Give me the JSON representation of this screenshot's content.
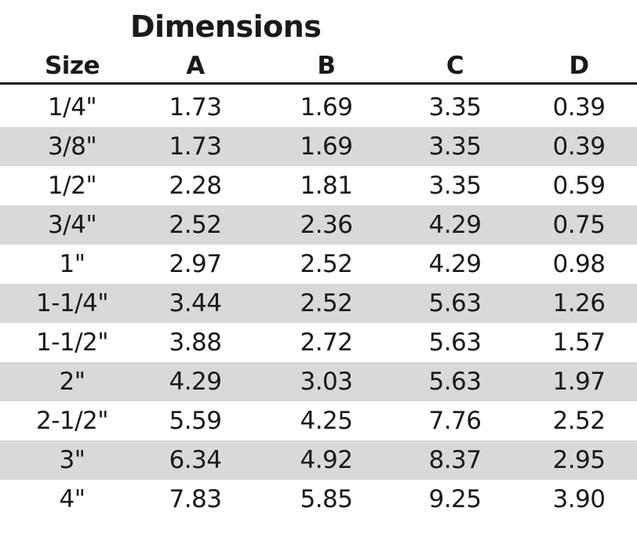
{
  "table": {
    "title": "Dimensions",
    "headers": [
      "Size",
      "A",
      "B",
      "C",
      "D"
    ],
    "rows": [
      [
        "1/4\"",
        "1.73",
        "1.69",
        "3.35",
        "0.39"
      ],
      [
        "3/8\"",
        "1.73",
        "1.69",
        "3.35",
        "0.39"
      ],
      [
        "1/2\"",
        "2.28",
        "1.81",
        "3.35",
        "0.59"
      ],
      [
        "3/4\"",
        "2.52",
        "2.36",
        "4.29",
        "0.75"
      ],
      [
        "1\"",
        "2.97",
        "2.52",
        "4.29",
        "0.98"
      ],
      [
        "1-1/4\"",
        "3.44",
        "2.52",
        "5.63",
        "1.26"
      ],
      [
        "1-1/2\"",
        "3.88",
        "2.72",
        "5.63",
        "1.57"
      ],
      [
        "2\"",
        "4.29",
        "3.03",
        "5.63",
        "1.97"
      ],
      [
        "2-1/2\"",
        "5.59",
        "4.25",
        "7.76",
        "2.52"
      ],
      [
        "3\"",
        "6.34",
        "4.92",
        "8.37",
        "2.95"
      ],
      [
        "4\"",
        "7.83",
        "5.85",
        "9.25",
        "3.90"
      ]
    ],
    "row_shading": "alternating",
    "shade_color": "#d9d9d9"
  }
}
